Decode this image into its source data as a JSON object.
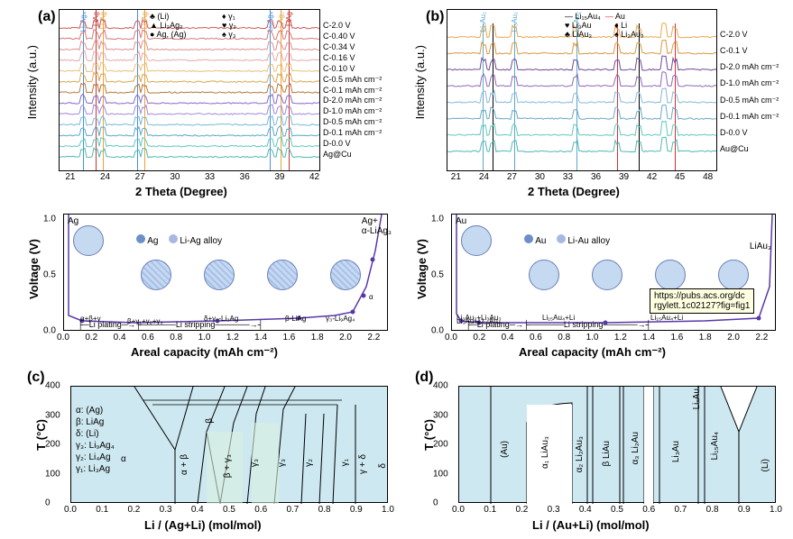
{
  "panelA": {
    "label": "(a)",
    "xlabel": "2 Theta (Degree)",
    "ylabel": "Intensity (a.u.)",
    "xticks": [
      21,
      24,
      27,
      30,
      33,
      36,
      39,
      42
    ],
    "xlim": [
      20,
      42.5
    ],
    "legend_symbols": [
      {
        "sym": "♣",
        "text": "(Li)"
      },
      {
        "sym": "♦",
        "text": "γ₁"
      },
      {
        "sym": "▲",
        "text": "Li₃Ag₂"
      },
      {
        "sym": "♥",
        "text": "γ₂"
      },
      {
        "sym": "●",
        "text": "Ag, (Ag)"
      },
      {
        "sym": "♠",
        "text": "γ₃"
      }
    ],
    "vlines": [
      {
        "x": 22.0,
        "color": "#4a90d9",
        "label": "Li₉Ag₄"
      },
      {
        "x": 23.1,
        "color": "#c43636",
        "label": "LiAg"
      },
      {
        "x": 23.7,
        "color": "#e8a23c",
        "label": "Li₄Ag"
      },
      {
        "x": 26.7,
        "color": "#4a90d9",
        "label": ""
      },
      {
        "x": 27.3,
        "color": "#e8a23c",
        "label": "Li₃Ag"
      },
      {
        "x": 38.1,
        "color": "#4a90d9",
        "label": "Li₉Ag₄"
      },
      {
        "x": 39.0,
        "color": "#e8a23c",
        "label": "Li₃Ag₂"
      },
      {
        "x": 39.7,
        "color": "#c43636",
        "label": "LiAg"
      }
    ],
    "traces": [
      {
        "label": "C-2.0 V",
        "color": "#d05858"
      },
      {
        "label": "C-0.40 V",
        "color": "#d87878"
      },
      {
        "label": "C-0.34 V",
        "color": "#e09090"
      },
      {
        "label": "C-0.16 V",
        "color": "#e8a8a8"
      },
      {
        "label": "C-0.10 V",
        "color": "#e8c078"
      },
      {
        "label": "C-0.5 mAh cm⁻²",
        "color": "#d8a850"
      },
      {
        "label": "C-0.1 mAh cm⁻²",
        "color": "#b87838"
      },
      {
        "label": "D-2.0 mAh cm⁻²",
        "color": "#8868c8"
      },
      {
        "label": "D-1.0 mAh cm⁻²",
        "color": "#a088d8"
      },
      {
        "label": "D-0.5 mAh cm⁻²",
        "color": "#78b8d8"
      },
      {
        "label": "D-0.1 mAh cm⁻²",
        "color": "#58a8c8"
      },
      {
        "label": "D-0.0 V",
        "color": "#60c8c0"
      },
      {
        "label": "Ag@Cu",
        "color": "#50b8b0"
      }
    ]
  },
  "panelB": {
    "label": "(b)",
    "xlabel": "2 Theta (Degree)",
    "ylabel": "Intensity (a.u.)",
    "xticks": [
      21,
      24,
      27,
      30,
      33,
      36,
      39,
      42,
      45,
      48
    ],
    "xlim": [
      20,
      49
    ],
    "legend_lines": [
      {
        "text": "Li₁₅Au₄",
        "color": "#000000"
      },
      {
        "text": "Au",
        "color": "#d03030"
      }
    ],
    "legend_symbols": [
      {
        "sym": "♥",
        "text": "Li₃Au"
      },
      {
        "sym": "♦",
        "text": "Li"
      },
      {
        "sym": "♣",
        "text": "LiAu₃"
      },
      {
        "sym": "♠",
        "text": "Li₃Au₂"
      }
    ],
    "vlines": [
      {
        "x": 23.8,
        "color": "#58a8c8",
        "label": "Li₃Au₂"
      },
      {
        "x": 27.2,
        "color": "#58a8c8",
        "label": "Li₃Au₂"
      },
      {
        "x": 33.8,
        "color": "#58a8c8",
        "label": "Li₃Au₂"
      },
      {
        "x": 24.8,
        "color": "#000000",
        "label": ""
      },
      {
        "x": 40.5,
        "color": "#000000",
        "label": ""
      },
      {
        "x": 38.2,
        "color": "#d03030",
        "label": ""
      },
      {
        "x": 44.4,
        "color": "#d03030",
        "label": ""
      }
    ],
    "traces": [
      {
        "label": "C-2.0 V",
        "color": "#e8a850"
      },
      {
        "label": "C-0.1 V",
        "color": "#d89840"
      },
      {
        "label": "D-2.0 mAh cm⁻²",
        "color": "#704898"
      },
      {
        "label": "D-1.0 mAh cm⁻²",
        "color": "#9068b8"
      },
      {
        "label": "D-0.5 mAh cm⁻²",
        "color": "#88b8d8"
      },
      {
        "label": "D-0.1 mAh cm⁻²",
        "color": "#68a8c8"
      },
      {
        "label": "D-0.0 V",
        "color": "#60c8c0"
      },
      {
        "label": "Au@Cu",
        "color": "#50b8b0"
      }
    ]
  },
  "curveAg": {
    "xlabel": "Areal capacity (mAh cm⁻²)",
    "ylabel": "Voltage (V)",
    "xlim": [
      0,
      2.3
    ],
    "ylim": [
      0,
      1.05
    ],
    "xticks": [
      0.0,
      0.2,
      0.4,
      0.6,
      0.8,
      1.0,
      1.2,
      1.4,
      1.6,
      1.8,
      2.0,
      2.2
    ],
    "yticks": [
      0.0,
      0.5,
      1.0
    ],
    "legend": [
      {
        "text": "Ag",
        "color": "#6b8fc8"
      },
      {
        "text": "Li-Ag alloy",
        "color": "#a8b8e0"
      }
    ],
    "topleft": "Ag",
    "topright": "Ag+\nα-LiAg₃",
    "annotations": [
      "α+β+γ",
      "β+γ₁+γ₂+γ₃",
      "δ+γ₃-Li₃Ag",
      "β-LiAg",
      "γ₃-Li₉Ag₄",
      "α"
    ],
    "arrows": {
      "left": "Li plating",
      "right": "Li stripping"
    },
    "line_color": "#5838a8"
  },
  "curveAu": {
    "xlabel": "Areal capacity (mAh cm⁻²)",
    "ylabel": "Voltage (V)",
    "xlim": [
      0,
      2.3
    ],
    "ylim": [
      0,
      1.05
    ],
    "xticks": [
      0.0,
      0.2,
      0.4,
      0.6,
      0.8,
      1.0,
      1.2,
      1.4,
      1.6,
      1.8,
      2.0,
      2.2
    ],
    "yticks": [
      0.0,
      0.5,
      1.0
    ],
    "legend": [
      {
        "text": "Au",
        "color": "#6b8fc8"
      },
      {
        "text": "Li-Au alloy",
        "color": "#a8b8e0"
      }
    ],
    "topleft": "Au",
    "topright": "LiAu₃",
    "annotations": [
      "Li₃Au+Li₁₅Au₄",
      "Li₃Au₂+Li₃Au₃",
      "Li₁₅Au₄+Li",
      "Li₁₅Au₄+Li"
    ],
    "arrows": {
      "left": "Li plating",
      "right": "Li stripping"
    },
    "line_color": "#5838a8"
  },
  "panelC": {
    "label": "(c)",
    "xlabel": "Li / (Ag+Li) (mol/mol)",
    "ylabel": "T (°C)",
    "xlim": [
      0,
      1.0
    ],
    "ylim": [
      0,
      400
    ],
    "xticks": [
      0.0,
      0.1,
      0.2,
      0.3,
      0.4,
      0.5,
      0.6,
      0.7,
      0.8,
      0.9,
      1.0
    ],
    "yticks": [
      0,
      100,
      200,
      300,
      400
    ],
    "bg": "#cde8f0",
    "regions": [
      "α",
      "α + β",
      "β",
      "β + γ₃",
      "γ₃",
      "γ₃",
      "γ₂",
      "γ₂",
      "γ₁",
      "γ + δ",
      "δ"
    ],
    "legend": [
      "α: (Ag)",
      "β: LiAg",
      "δ: (Li)",
      "γ₃: Li₉Ag₄",
      "γ₂: Li₄Ag",
      "γ₁: Li₃Ag"
    ]
  },
  "panelD": {
    "label": "(d)",
    "xlabel": "Li / (Au+Li) (mol/mol)",
    "ylabel": "T (°C)",
    "xlim": [
      0,
      1.0
    ],
    "ylim": [
      0,
      400
    ],
    "xticks": [
      0.0,
      0.1,
      0.2,
      0.3,
      0.4,
      0.5,
      0.6,
      0.7,
      0.8,
      0.9,
      1.0
    ],
    "yticks": [
      0,
      100,
      200,
      300,
      400
    ],
    "bg": "#cde8f0",
    "regions": [
      "(Au)",
      "α₁ LiAu₃",
      "α₂ Li₂Au₃",
      "β LiAu",
      "α₃,Li₂Au",
      "Li₃Au",
      "LiₓAu₄",
      "Li₁₅Au₄"
    ]
  },
  "tooltip": {
    "text": "https://pubs.acs.org/dc\nrgylett.1c02127?fig=fig1"
  },
  "colors": {
    "axis": "#000000",
    "text": "#000000"
  }
}
